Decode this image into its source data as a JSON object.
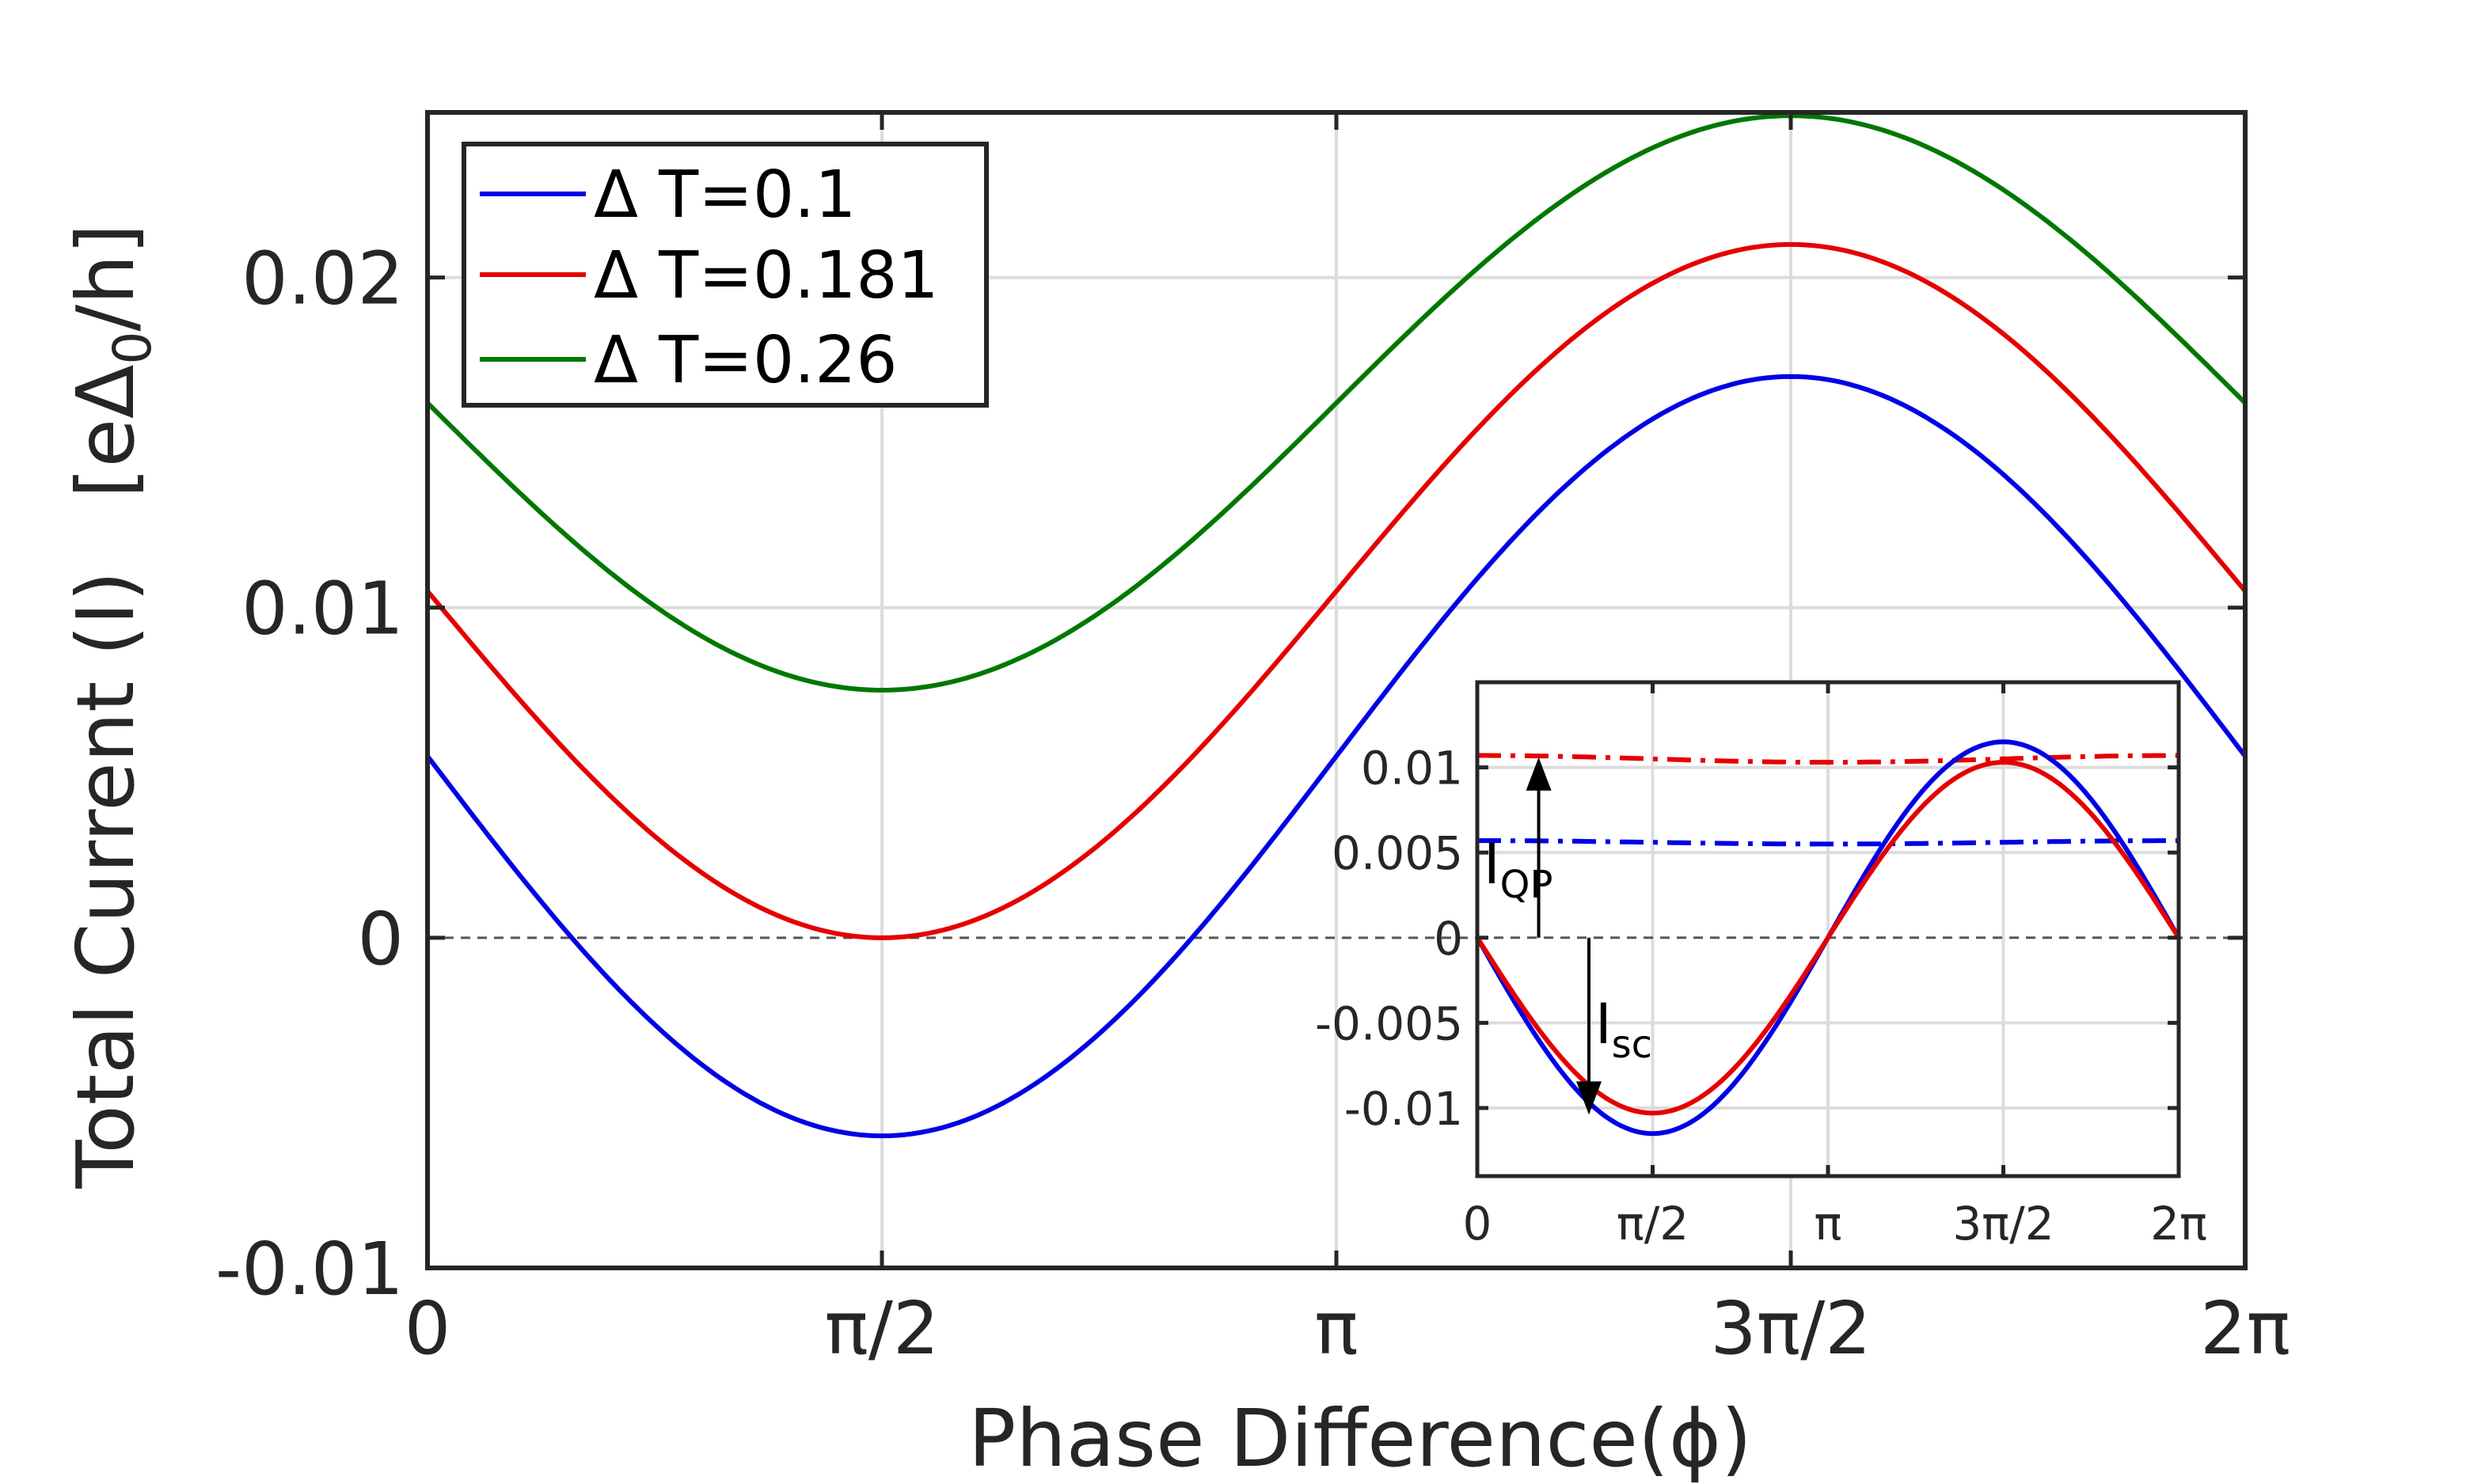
{
  "chart_data": [
    {
      "id": "main",
      "type": "line",
      "xlabel": "Phase Difference(ϕ)",
      "ylabel_main": "Total Current (I)",
      "ylabel_units": "[eΔ",
      "ylabel_units_sub": "0",
      "ylabel_units_tail": "/h]",
      "xlim": [
        0,
        6.2832
      ],
      "ylim": [
        -0.01,
        0.025
      ],
      "x_ticks": [
        {
          "value": 0,
          "label": "0"
        },
        {
          "value": 1.5708,
          "label": "π/2"
        },
        {
          "value": 3.1416,
          "label": "π"
        },
        {
          "value": 4.7124,
          "label": "3π/2"
        },
        {
          "value": 6.2832,
          "label": "2π"
        }
      ],
      "y_ticks": [
        {
          "value": -0.01,
          "label": "-0.01"
        },
        {
          "value": 0,
          "label": "0"
        },
        {
          "value": 0.01,
          "label": "0.01"
        },
        {
          "value": 0.02,
          "label": "0.02"
        }
      ],
      "grid": true,
      "zero_line": true,
      "legend_position": "top-left",
      "series": [
        {
          "name": "Δ T=0.1",
          "color": "#0000e6",
          "offset": 0.0055,
          "amplitude": 0.0115,
          "x_start": 0,
          "x_end": 6.2832
        },
        {
          "name": "Δ T=0.181",
          "color": "#e60000",
          "offset": 0.0105,
          "amplitude": 0.0105,
          "x_start": 0,
          "x_end": 6.2832
        },
        {
          "name": "Δ T=0.26",
          "color": "#007800",
          "offset": 0.0162,
          "amplitude": 0.0087,
          "x_start": 0,
          "x_end": 6.2832
        }
      ]
    },
    {
      "id": "inset",
      "type": "line",
      "xlim": [
        0,
        6.2832
      ],
      "ylim": [
        -0.014,
        0.015
      ],
      "x_ticks": [
        {
          "value": 0,
          "label": "0"
        },
        {
          "value": 1.5708,
          "label": "π/2"
        },
        {
          "value": 3.1416,
          "label": "π"
        },
        {
          "value": 4.7124,
          "label": "3π/2"
        },
        {
          "value": 6.2832,
          "label": "2π"
        }
      ],
      "y_ticks": [
        {
          "value": -0.01,
          "label": "-0.01"
        },
        {
          "value": -0.005,
          "label": "-0.005"
        },
        {
          "value": 0,
          "label": "0"
        },
        {
          "value": 0.005,
          "label": "0.005"
        },
        {
          "value": 0.01,
          "label": "0.01"
        }
      ],
      "grid": true,
      "zero_line": true,
      "series": [
        {
          "name": "I_QP (T=0.181)",
          "color": "#e60000",
          "style": "dashdot",
          "kind": "qp",
          "base": 0.0105,
          "ripple": 0.0002
        },
        {
          "name": "I_QP (T=0.1)",
          "color": "#0000e6",
          "style": "dashdot",
          "kind": "qp",
          "base": 0.0056,
          "ripple": 0.0001
        },
        {
          "name": "I_sc (T=0.1)",
          "color": "#0000e6",
          "style": "solid",
          "kind": "sc",
          "amplitude": 0.0115
        },
        {
          "name": "I_sc (T=0.181)",
          "color": "#e60000",
          "style": "solid",
          "kind": "sc",
          "amplitude": 0.0103
        }
      ],
      "annotations": {
        "qp_label": "I",
        "qp_sub": "QP",
        "sc_label": "I",
        "sc_sub": "sc",
        "qp_arrow": {
          "x": 0.55,
          "y_from": 0,
          "y_to": 0.0105
        },
        "sc_arrow": {
          "x": 1.0,
          "y_from": 0,
          "y_to": -0.0103
        }
      }
    }
  ]
}
